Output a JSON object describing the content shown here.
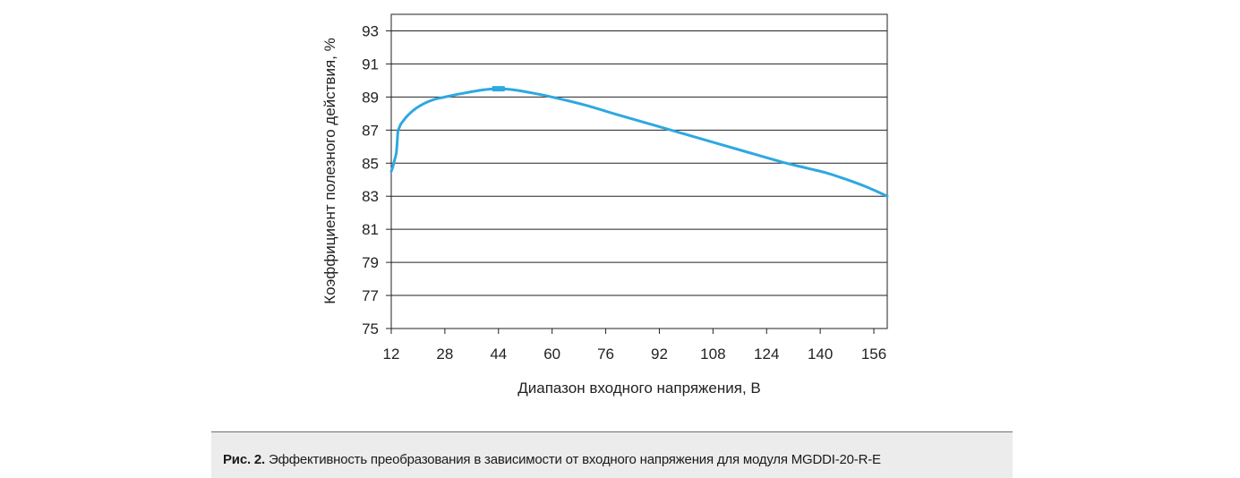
{
  "chart_data": {
    "type": "line",
    "title": "",
    "xlabel": "Диапазон входного напряжения, В",
    "ylabel": "Коэффициент полезного действия, %",
    "xlim": [
      12,
      160
    ],
    "ylim": [
      75,
      94
    ],
    "x_ticks": [
      12,
      28,
      44,
      60,
      76,
      92,
      108,
      124,
      140,
      156
    ],
    "y_ticks": [
      75,
      77,
      79,
      81,
      83,
      85,
      87,
      89,
      91,
      93
    ],
    "grid": "horizontal",
    "line_color": "#2ea8e0",
    "series": [
      {
        "x": [
          12,
          12.5,
          13,
          13.5,
          13.8,
          14,
          14.5,
          15,
          17,
          20,
          24,
          28,
          34,
          40,
          44,
          48,
          54,
          60,
          70,
          80,
          92,
          104,
          116,
          128,
          136,
          142,
          148,
          154,
          160
        ],
        "y": [
          84.5,
          84.8,
          85.2,
          85.6,
          86.3,
          86.9,
          87.2,
          87.4,
          87.9,
          88.4,
          88.8,
          89.0,
          89.25,
          89.45,
          89.5,
          89.45,
          89.25,
          89.0,
          88.5,
          87.9,
          87.2,
          86.5,
          85.8,
          85.1,
          84.7,
          84.4,
          84.0,
          83.55,
          83.0
        ]
      }
    ],
    "marker": {
      "x": 44,
      "y": 89.5
    }
  },
  "caption": {
    "label": "Рис. 2.",
    "text": " Эффективность преобразования в зависимости от входного напряжения для модуля MGDDI-20-R-E"
  }
}
